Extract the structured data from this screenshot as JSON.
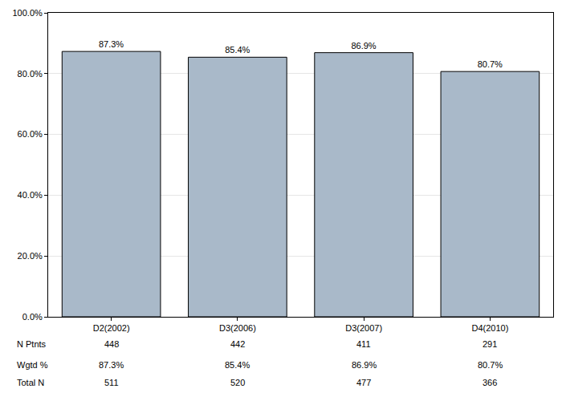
{
  "chart_data": {
    "type": "bar",
    "categories": [
      "D2(2002)",
      "D3(2006)",
      "D3(2007)",
      "D4(2010)"
    ],
    "values": [
      87.3,
      85.4,
      86.9,
      80.7
    ],
    "value_labels": [
      "87.3%",
      "85.4%",
      "86.9%",
      "80.7%"
    ],
    "data_labels": true,
    "color": "#a9b9c9",
    "ylim": [
      0,
      100
    ],
    "yticks": [
      {
        "value": 0,
        "label": "0.0%"
      },
      {
        "value": 20,
        "label": "20.0%"
      },
      {
        "value": 40,
        "label": "40.0%"
      },
      {
        "value": 60,
        "label": "60.0%"
      },
      {
        "value": 80,
        "label": "80.0%"
      },
      {
        "value": 100,
        "label": "100.0%"
      }
    ],
    "grid": true
  },
  "table": {
    "rows": [
      {
        "label": "N Ptnts",
        "values": [
          448,
          442,
          411,
          291
        ]
      },
      {
        "label": "Wgtd %",
        "values": [
          87.3,
          85.4,
          86.9,
          80.7
        ],
        "value_labels": [
          "87.3%",
          "85.4%",
          "86.9%",
          "80.7%"
        ]
      },
      {
        "label": "Total N",
        "values": [
          511,
          520,
          477,
          366
        ]
      }
    ]
  }
}
